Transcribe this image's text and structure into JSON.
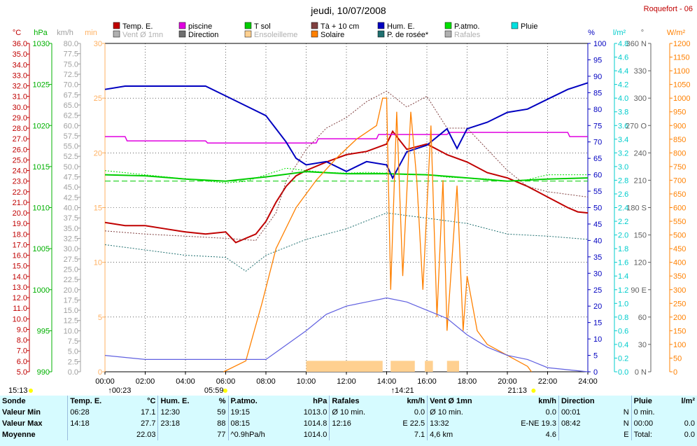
{
  "header": {
    "title": "jeudi, 10/07/2008",
    "station": "Roquefort - 06"
  },
  "colors": {
    "temp": "#c00000",
    "piscine": "#e000e0",
    "tsol": "#00cc00",
    "t10": "#804040",
    "hum": "#0000c0",
    "patm": "#00e000",
    "pluie": "#00e0e0",
    "vent": "#b0b0b0",
    "direction": "#707070",
    "ensol": "#ffd090",
    "solaire": "#ff8000",
    "rosee": "#207070",
    "rafales": "#6060e0"
  },
  "legend": [
    {
      "label": "Temp. E.",
      "color": "#c00000"
    },
    {
      "label": "piscine",
      "color": "#e000e0"
    },
    {
      "label": "T sol",
      "color": "#00cc00"
    },
    {
      "label": "Tà + 10 cm",
      "color": "#804040"
    },
    {
      "label": "Hum. E.",
      "color": "#0000c0"
    },
    {
      "label": "P.atmo.",
      "color": "#00e000"
    },
    {
      "label": "Pluie",
      "color": "#00e0e0"
    },
    {
      "label": "Vent Ø 1mn",
      "color": "#b0b0b0"
    },
    {
      "label": "Direction",
      "color": "#707070"
    },
    {
      "label": "Ensoleilleme",
      "color": "#ffd090"
    },
    {
      "label": "Solaire",
      "color": "#ff8000"
    },
    {
      "label": "P. de rosée*",
      "color": "#207070"
    },
    {
      "label": "Rafales",
      "color": "#b0b0b0"
    }
  ],
  "axes": {
    "temp": {
      "unit": "°C",
      "min": 5,
      "max": 36,
      "step": 1
    },
    "hpa": {
      "unit": "hPa",
      "min": 990,
      "max": 1030,
      "step": 5
    },
    "kmh": {
      "unit": "km/h",
      "min": 0,
      "max": 80,
      "step": 2.5
    },
    "min": {
      "unit": "min",
      "min": 0,
      "max": 30,
      "step": 5
    },
    "pct": {
      "unit": "%",
      "min": 0,
      "max": 100,
      "step": 5
    },
    "lm2": {
      "unit": "l/m²",
      "min": 0,
      "max": 4.8,
      "step": 0.2
    },
    "deg": {
      "unit": "°",
      "min": 0,
      "max": 360,
      "step": 30
    },
    "wm2": {
      "unit": "W/m²",
      "min": 0,
      "max": 1200,
      "step": 50
    },
    "time": {
      "labels": [
        "00:00",
        "02:00",
        "04:00",
        "06:00",
        "08:00",
        "10:00",
        "12:00",
        "14:00",
        "16:00",
        "18:00",
        "20:00",
        "22:00",
        "24:00"
      ]
    }
  },
  "deg_labels": {
    "0": "N",
    "90": "E",
    "180": "S",
    "270": "O",
    "360": "N"
  },
  "sun": {
    "rise": "05:59",
    "set": "21:13",
    "mark1": "15:13",
    "mark2": "00:23",
    "noon": "14:21"
  },
  "chart_data": {
    "type": "line",
    "title": "jeudi, 10/07/2008",
    "x_unit": "hours",
    "series": [
      {
        "name": "Temp. E.",
        "axis": "temp",
        "points": [
          [
            0,
            19.1
          ],
          [
            1,
            18.8
          ],
          [
            2,
            18.8
          ],
          [
            3,
            18.5
          ],
          [
            4,
            18.2
          ],
          [
            5,
            18.0
          ],
          [
            6,
            18.2
          ],
          [
            6.5,
            17.2
          ],
          [
            7.5,
            18.0
          ],
          [
            8,
            19.2
          ],
          [
            8.5,
            21
          ],
          [
            9,
            22.5
          ],
          [
            9.5,
            23.5
          ],
          [
            10,
            24
          ],
          [
            11,
            24.8
          ],
          [
            12,
            25.5
          ],
          [
            13,
            25.8
          ],
          [
            14,
            26.5
          ],
          [
            14.3,
            27.7
          ],
          [
            15,
            26
          ],
          [
            16,
            26.5
          ],
          [
            17,
            25.5
          ],
          [
            18,
            24.8
          ],
          [
            19,
            23.8
          ],
          [
            20,
            23.3
          ],
          [
            21,
            22.5
          ],
          [
            22,
            21.5
          ],
          [
            23,
            20.5
          ],
          [
            23.5,
            20.1
          ],
          [
            24,
            20.0
          ]
        ]
      },
      {
        "name": "piscine",
        "axis": "temp",
        "points": [
          [
            0,
            27.2
          ],
          [
            1,
            27.2
          ],
          [
            1.1,
            26.8
          ],
          [
            5,
            26.8
          ],
          [
            5.1,
            26.6
          ],
          [
            10.5,
            26.6
          ],
          [
            10.6,
            27
          ],
          [
            13.5,
            27
          ],
          [
            13.6,
            27.4
          ],
          [
            17,
            27.4
          ],
          [
            17.1,
            27.6
          ],
          [
            23,
            27.6
          ],
          [
            23.1,
            27.2
          ],
          [
            24,
            27.2
          ]
        ]
      },
      {
        "name": "T sol",
        "axis": "temp",
        "points": [
          [
            0,
            23.6
          ],
          [
            2,
            23.5
          ],
          [
            4,
            23.2
          ],
          [
            6,
            23.0
          ],
          [
            8,
            23.4
          ],
          [
            10,
            23.9
          ],
          [
            12,
            23.7
          ],
          [
            14,
            23.7
          ],
          [
            16,
            23.6
          ],
          [
            18,
            23.3
          ],
          [
            20,
            23.0
          ],
          [
            22,
            23.2
          ],
          [
            24,
            23.3
          ]
        ]
      },
      {
        "name": "Tà + 10 cm",
        "axis": "temp",
        "points": [
          [
            0,
            18.3
          ],
          [
            2,
            18.0
          ],
          [
            4,
            17.8
          ],
          [
            6,
            17.6
          ],
          [
            7.5,
            17.4
          ],
          [
            8.5,
            20
          ],
          [
            9,
            23
          ],
          [
            10,
            26
          ],
          [
            11,
            28
          ],
          [
            12,
            29
          ],
          [
            13,
            30.5
          ],
          [
            14,
            31.5
          ],
          [
            15,
            30
          ],
          [
            16,
            31
          ],
          [
            17,
            28
          ],
          [
            18,
            28
          ],
          [
            19,
            26
          ],
          [
            20,
            24
          ],
          [
            21,
            22.5
          ],
          [
            22,
            22
          ],
          [
            24,
            21.5
          ]
        ]
      },
      {
        "name": "Hum. E.",
        "axis": "pct",
        "points": [
          [
            0,
            86
          ],
          [
            1,
            87
          ],
          [
            2,
            87
          ],
          [
            3,
            87
          ],
          [
            4,
            87
          ],
          [
            5,
            87
          ],
          [
            6,
            84
          ],
          [
            7,
            81
          ],
          [
            8,
            78
          ],
          [
            8.5,
            74
          ],
          [
            9,
            70
          ],
          [
            9.5,
            65
          ],
          [
            10,
            63
          ],
          [
            11,
            64
          ],
          [
            12,
            61
          ],
          [
            13,
            64
          ],
          [
            14,
            63
          ],
          [
            14.3,
            59
          ],
          [
            15,
            67
          ],
          [
            16,
            69
          ],
          [
            17,
            74
          ],
          [
            17.5,
            68
          ],
          [
            18,
            74
          ],
          [
            19,
            76
          ],
          [
            20,
            79
          ],
          [
            21,
            80
          ],
          [
            22,
            83
          ],
          [
            23,
            86
          ],
          [
            24,
            88
          ]
        ]
      },
      {
        "name": "P.atmo.",
        "axis": "hpa",
        "points": [
          [
            0,
            1014.5
          ],
          [
            2,
            1014.0
          ],
          [
            4,
            1013.5
          ],
          [
            6,
            1013.0
          ],
          [
            7,
            1013.2
          ],
          [
            8,
            1014.0
          ],
          [
            9,
            1014.8
          ],
          [
            10,
            1014.5
          ],
          [
            11,
            1014.3
          ],
          [
            12,
            1014.2
          ],
          [
            13,
            1014.3
          ],
          [
            14,
            1014.2
          ],
          [
            15,
            1014.0
          ],
          [
            16,
            1014.0
          ],
          [
            17,
            1013.7
          ],
          [
            18,
            1013.6
          ],
          [
            19,
            1013.5
          ],
          [
            20,
            1013.2
          ],
          [
            21,
            1013.4
          ],
          [
            22,
            1014.0
          ],
          [
            24,
            1014.0
          ]
        ]
      },
      {
        "name": "P. de rosée*",
        "axis": "temp",
        "points": [
          [
            0,
            17.0
          ],
          [
            2,
            16.5
          ],
          [
            4,
            16.0
          ],
          [
            6,
            15.8
          ],
          [
            7,
            14.5
          ],
          [
            8,
            16
          ],
          [
            10,
            17.5
          ],
          [
            12,
            18.5
          ],
          [
            14,
            20
          ],
          [
            16,
            19.5
          ],
          [
            18,
            19
          ],
          [
            20,
            18
          ],
          [
            22,
            17.8
          ],
          [
            24,
            17.5
          ]
        ]
      },
      {
        "name": "Solaire",
        "axis": "wm2",
        "points": [
          [
            5.9,
            0
          ],
          [
            7,
            40
          ],
          [
            7.8,
            250
          ],
          [
            8.5,
            450
          ],
          [
            9.5,
            600
          ],
          [
            10.5,
            700
          ],
          [
            11.5,
            780
          ],
          [
            12.5,
            850
          ],
          [
            13.5,
            900
          ],
          [
            13.8,
            1000
          ],
          [
            14,
            1000
          ],
          [
            14.2,
            300
          ],
          [
            14.5,
            950
          ],
          [
            14.8,
            350
          ],
          [
            15.2,
            950
          ],
          [
            15.5,
            700
          ],
          [
            15.8,
            300
          ],
          [
            16.2,
            900
          ],
          [
            16.5,
            200
          ],
          [
            16.8,
            700
          ],
          [
            17,
            150
          ],
          [
            17.5,
            680
          ],
          [
            17.8,
            150
          ],
          [
            18,
            350
          ],
          [
            18.5,
            150
          ],
          [
            19,
            100
          ],
          [
            20,
            60
          ],
          [
            21,
            20
          ],
          [
            21.2,
            0
          ]
        ]
      },
      {
        "name": "Rafales",
        "axis": "kmh",
        "points": [
          [
            0,
            4
          ],
          [
            2,
            3
          ],
          [
            4,
            3
          ],
          [
            6,
            3
          ],
          [
            8,
            3
          ],
          [
            10,
            10
          ],
          [
            11,
            14
          ],
          [
            12,
            16
          ],
          [
            13,
            17
          ],
          [
            14,
            18
          ],
          [
            15,
            17
          ],
          [
            16,
            15
          ],
          [
            17,
            13
          ],
          [
            18,
            9
          ],
          [
            19,
            6
          ],
          [
            20,
            4
          ],
          [
            21,
            3
          ],
          [
            22,
            1
          ],
          [
            24,
            0
          ]
        ]
      }
    ]
  },
  "table": {
    "headers": [
      "Sonde",
      "Temp. E.",
      "°C",
      "Hum. E.",
      "%",
      "P.atmo.",
      "hPa",
      "Rafales",
      "km/h",
      "Vent Ø 1mn",
      "km/h",
      "Direction",
      "",
      "Pluie",
      "l/m²"
    ],
    "rows": [
      [
        "Valeur Min",
        "06:28",
        "17.1",
        "12:30",
        "59",
        "19:15",
        "1013.0",
        "Ø 10 min.",
        "0.0",
        "Ø 10 min.",
        "0.0",
        "00:01",
        "N",
        "0 min.",
        ""
      ],
      [
        "Valeur Max",
        "14:18",
        "27.7",
        "23:18",
        "88",
        "08:15",
        "1014.8",
        "12:16",
        "E 22.5",
        "13:32",
        "E-NE 19.3",
        "08:42",
        "N",
        "00:00",
        "0.0"
      ],
      [
        "Moyenne",
        "",
        "22.03",
        "",
        "77",
        "^0.9hPa/h",
        "1014.0",
        "",
        "7.1",
        "4,6 km",
        "4.6",
        "",
        "E",
        "Total:",
        "0.0"
      ]
    ]
  }
}
